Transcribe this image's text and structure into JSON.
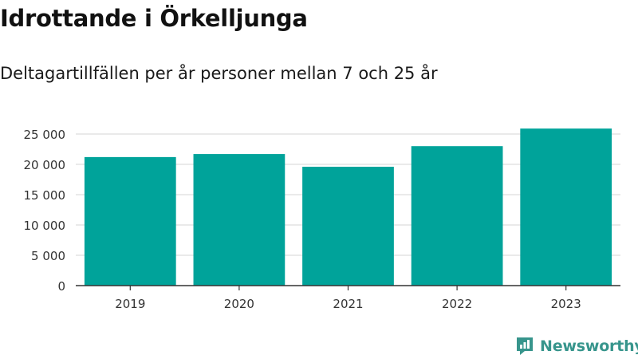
{
  "title": "Idrottande i Örkelljunga",
  "subtitle": "Deltagartillfällen per år personer mellan 7 och 25 år",
  "brand": {
    "name": "Newsworthy",
    "icon": "newsworthy-logo-icon"
  },
  "colors": {
    "bar": "#00a39a",
    "grid": "#dddddd",
    "axis": "#333333",
    "brand": "#37958c"
  },
  "chart_data": {
    "type": "bar",
    "title": "Idrottande i Örkelljunga",
    "subtitle": "Deltagartillfällen per år personer mellan 7 och 25 år",
    "categories": [
      "2019",
      "2020",
      "2021",
      "2022",
      "2023"
    ],
    "values": [
      21200,
      21700,
      19600,
      23000,
      25900
    ],
    "ylim": [
      0,
      25000
    ],
    "yticks": [
      0,
      5000,
      10000,
      15000,
      20000,
      25000
    ],
    "ytick_labels": [
      "0",
      "5 000",
      "10 000",
      "15 000",
      "20 000",
      "25 000"
    ],
    "grid": true,
    "legend": "none"
  }
}
